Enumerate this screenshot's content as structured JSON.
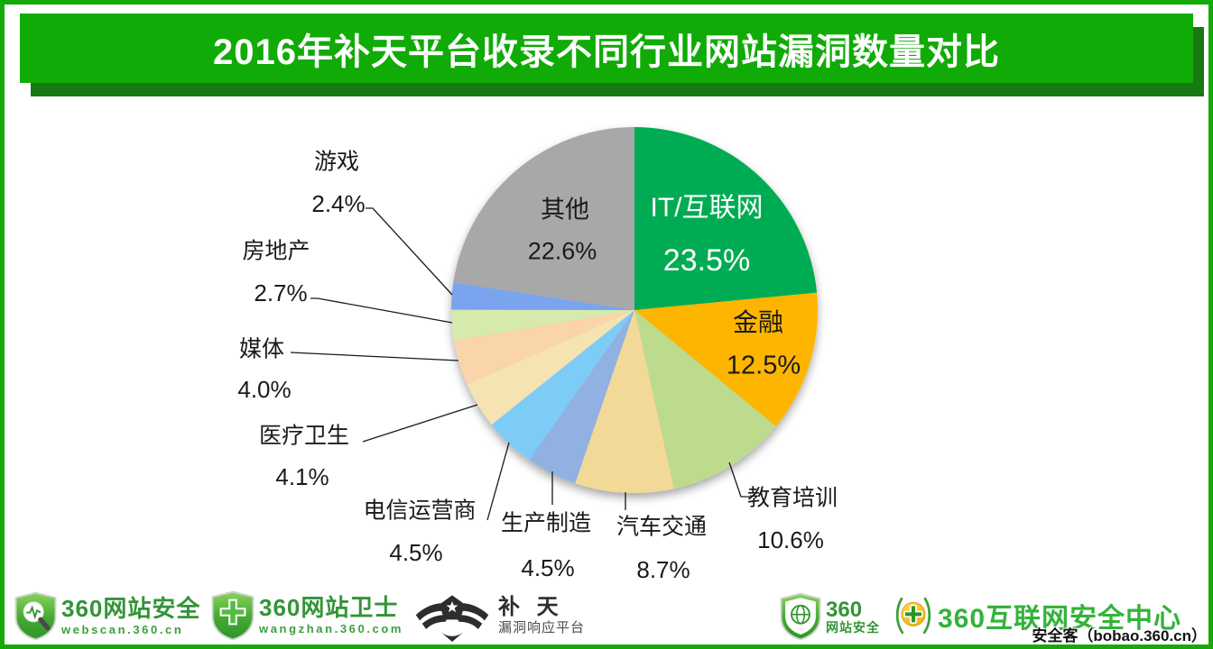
{
  "header": {
    "title": "2016年补天平台收录不同行业网站漏洞数量对比"
  },
  "chart_data": {
    "type": "pie",
    "title": "2016年补天平台收录不同行业网站漏洞数量对比",
    "categories": [
      "IT/互联网",
      "金融",
      "教育培训",
      "汽车交通",
      "生产制造",
      "电信运营商",
      "医疗卫生",
      "媒体",
      "房地产",
      "游戏",
      "其他"
    ],
    "values": [
      23.5,
      12.5,
      10.6,
      8.7,
      4.5,
      4.5,
      4.1,
      4.0,
      2.7,
      2.4,
      22.6
    ],
    "labels": [
      "23.5%",
      "12.5%",
      "10.6%",
      "8.7%",
      "4.5%",
      "4.5%",
      "4.1%",
      "4.0%",
      "2.7%",
      "2.4%",
      "22.6%"
    ],
    "colors": [
      "#00AC52",
      "#FEB502",
      "#BDDB8D",
      "#F3D997",
      "#90B1E2",
      "#7DCCF8",
      "#F6E3B2",
      "#FAD4AA",
      "#D5EAAB",
      "#7AA4EE",
      "#A8A8A8"
    ],
    "unit": "%",
    "start_angle_deg": 0,
    "direction": "clockwise",
    "legend_position": "none",
    "label_placement": {
      "inside": [
        "IT/互联网",
        "金融",
        "其他"
      ],
      "outside": [
        "教育培训",
        "汽车交通",
        "生产制造",
        "电信运营商",
        "医疗卫生",
        "媒体",
        "房地产",
        "游戏"
      ]
    }
  },
  "footer": {
    "webscan": {
      "title": "360网站安全",
      "subtitle": "webscan.360.cn"
    },
    "wangzhan": {
      "title": "360网站卫士",
      "subtitle": "wangzhan.360.com"
    },
    "butian": {
      "title": "补 天",
      "subtitle": "漏洞响应平台"
    },
    "site_security": {
      "line1": "360",
      "line2": "网站安全"
    },
    "isc": {
      "title": "360互联网安全中心"
    },
    "watermark": "安全客（bobao.360.cn）"
  },
  "theme": {
    "banner_green": "#10AB06",
    "banner_shadow_green": "#187812",
    "border_green": "#12AB08",
    "footer_text_green": "#339437",
    "isc_text_green": "#33B33A",
    "label_text_color": "#1A1A1A",
    "inside_label_white": "#FFFFFF"
  }
}
